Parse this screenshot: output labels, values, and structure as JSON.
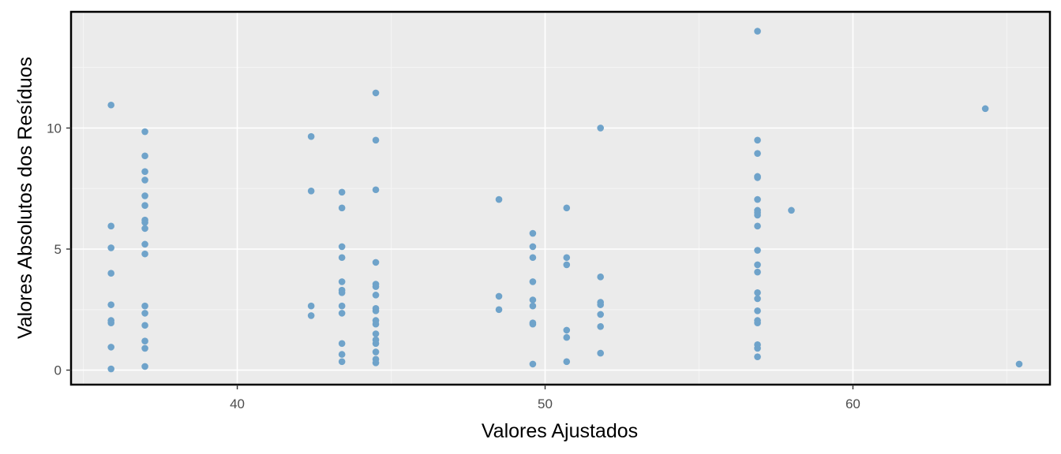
{
  "chart_data": {
    "type": "scatter",
    "title": "",
    "xlabel": "Valores Ajustados",
    "ylabel": "Valores Absolutos dos Resíduos",
    "xlim": [
      34.6,
      66.4
    ],
    "ylim": [
      -0.6,
      14.8
    ],
    "x_ticks": [
      40,
      50,
      60
    ],
    "x_tick_labels": [
      "40",
      "50",
      "60"
    ],
    "y_ticks": [
      0,
      5,
      10
    ],
    "y_tick_labels": [
      "0",
      "5",
      "10"
    ],
    "grid": true,
    "legend": "none",
    "colors": {
      "panel_bg": "#EBEBEB",
      "grid_major": "#FFFFFF",
      "grid_minor": "#F5F5F5",
      "point": "#6FA3CA",
      "frame": "#000000"
    },
    "series": [
      {
        "points": [
          [
            35.9,
            10.95
          ],
          [
            35.9,
            5.95
          ],
          [
            35.9,
            5.05
          ],
          [
            35.9,
            4.0
          ],
          [
            35.9,
            2.7
          ],
          [
            35.9,
            2.05
          ],
          [
            35.9,
            1.95
          ],
          [
            35.9,
            0.95
          ],
          [
            35.9,
            0.05
          ],
          [
            37.0,
            9.85
          ],
          [
            37.0,
            8.85
          ],
          [
            37.0,
            8.2
          ],
          [
            37.0,
            7.85
          ],
          [
            37.0,
            7.2
          ],
          [
            37.0,
            6.8
          ],
          [
            37.0,
            6.2
          ],
          [
            37.0,
            6.1
          ],
          [
            37.0,
            5.85
          ],
          [
            37.0,
            5.2
          ],
          [
            37.0,
            4.8
          ],
          [
            37.0,
            2.65
          ],
          [
            37.0,
            2.35
          ],
          [
            37.0,
            1.85
          ],
          [
            37.0,
            1.2
          ],
          [
            37.0,
            0.9
          ],
          [
            37.0,
            0.15
          ],
          [
            42.4,
            9.65
          ],
          [
            42.4,
            7.4
          ],
          [
            42.4,
            2.65
          ],
          [
            42.4,
            2.25
          ],
          [
            43.4,
            7.35
          ],
          [
            43.4,
            6.7
          ],
          [
            43.4,
            5.1
          ],
          [
            43.4,
            4.65
          ],
          [
            43.4,
            3.65
          ],
          [
            43.4,
            3.3
          ],
          [
            43.4,
            3.2
          ],
          [
            43.4,
            2.65
          ],
          [
            43.4,
            2.35
          ],
          [
            43.4,
            1.1
          ],
          [
            43.4,
            0.65
          ],
          [
            43.4,
            0.35
          ],
          [
            44.5,
            11.45
          ],
          [
            44.5,
            9.5
          ],
          [
            44.5,
            7.45
          ],
          [
            44.5,
            4.45
          ],
          [
            44.5,
            3.55
          ],
          [
            44.5,
            3.45
          ],
          [
            44.5,
            3.1
          ],
          [
            44.5,
            2.55
          ],
          [
            44.5,
            2.45
          ],
          [
            44.5,
            2.05
          ],
          [
            44.5,
            1.9
          ],
          [
            44.5,
            1.5
          ],
          [
            44.5,
            1.25
          ],
          [
            44.5,
            1.1
          ],
          [
            44.5,
            0.75
          ],
          [
            44.5,
            0.45
          ],
          [
            44.5,
            0.3
          ],
          [
            48.5,
            7.05
          ],
          [
            48.5,
            3.05
          ],
          [
            48.5,
            2.5
          ],
          [
            49.6,
            5.65
          ],
          [
            49.6,
            5.1
          ],
          [
            49.6,
            4.65
          ],
          [
            49.6,
            3.65
          ],
          [
            49.6,
            2.9
          ],
          [
            49.6,
            2.65
          ],
          [
            49.6,
            1.95
          ],
          [
            49.6,
            1.9
          ],
          [
            49.6,
            0.25
          ],
          [
            50.7,
            6.7
          ],
          [
            50.7,
            4.65
          ],
          [
            50.7,
            4.35
          ],
          [
            50.7,
            1.65
          ],
          [
            50.7,
            1.35
          ],
          [
            50.7,
            0.35
          ],
          [
            51.8,
            10.0
          ],
          [
            51.8,
            3.85
          ],
          [
            51.8,
            2.8
          ],
          [
            51.8,
            2.7
          ],
          [
            51.8,
            2.3
          ],
          [
            51.8,
            1.8
          ],
          [
            51.8,
            0.7
          ],
          [
            56.9,
            14.0
          ],
          [
            56.9,
            9.5
          ],
          [
            56.9,
            8.95
          ],
          [
            56.9,
            8.0
          ],
          [
            56.9,
            7.95
          ],
          [
            56.9,
            7.05
          ],
          [
            56.9,
            6.6
          ],
          [
            56.9,
            6.5
          ],
          [
            56.9,
            6.4
          ],
          [
            56.9,
            5.95
          ],
          [
            56.9,
            4.95
          ],
          [
            56.9,
            4.35
          ],
          [
            56.9,
            4.05
          ],
          [
            56.9,
            3.2
          ],
          [
            56.9,
            2.95
          ],
          [
            56.9,
            2.45
          ],
          [
            56.9,
            2.05
          ],
          [
            56.9,
            1.95
          ],
          [
            56.9,
            1.05
          ],
          [
            56.9,
            0.9
          ],
          [
            56.9,
            0.55
          ],
          [
            58.0,
            6.6
          ],
          [
            64.3,
            10.8
          ],
          [
            65.4,
            0.25
          ]
        ]
      }
    ]
  }
}
